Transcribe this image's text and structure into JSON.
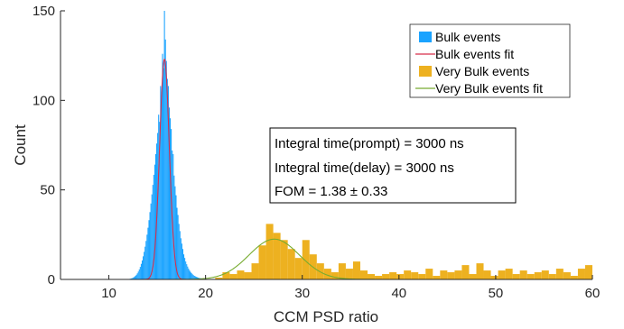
{
  "chart_data": {
    "type": "histogram",
    "title": "",
    "xlabel": "CCM PSD ratio",
    "ylabel": "Count",
    "xlim": [
      5,
      60
    ],
    "ylim": [
      0,
      150
    ],
    "xticks": [
      "10",
      "20",
      "30",
      "40",
      "50",
      "60"
    ],
    "xtick_values": [
      10,
      20,
      30,
      40,
      50,
      60
    ],
    "yticks": [
      "0",
      "50",
      "100",
      "150"
    ],
    "ytick_values": [
      0,
      50,
      100,
      150
    ],
    "legend_placement": "top-right",
    "legend": [
      {
        "label": "Bulk events",
        "kind": "bar",
        "color": "#1aa3ff"
      },
      {
        "label": "Bulk events fit",
        "kind": "line",
        "color": "#d62f4b"
      },
      {
        "label": "Very Bulk events",
        "kind": "bar",
        "color": "#edb120"
      },
      {
        "label": "Very Bulk events fit",
        "kind": "line",
        "color": "#77ac30"
      }
    ],
    "annotation": [
      "Integral time(prompt) = 3000 ns",
      "Integral time(delay) = 3000 ns",
      "FOM = 1.38 ± 0.33"
    ],
    "series": [
      {
        "name": "Bulk events",
        "kind": "histogram",
        "color": "#1aa3ff",
        "bin_width": 0.1,
        "bins": [
          [
            12.0,
            0.2
          ],
          [
            12.1,
            0.3
          ],
          [
            12.2,
            0.4
          ],
          [
            12.3,
            0.6
          ],
          [
            12.4,
            0.8
          ],
          [
            12.5,
            1.1
          ],
          [
            12.6,
            1.5
          ],
          [
            12.7,
            2.0
          ],
          [
            12.8,
            2.6
          ],
          [
            12.9,
            3.4
          ],
          [
            13.0,
            4.4
          ],
          [
            13.1,
            5.6
          ],
          [
            13.2,
            7.0
          ],
          [
            13.3,
            8.7
          ],
          [
            13.4,
            10.6
          ],
          [
            13.5,
            12.9
          ],
          [
            13.6,
            15.4
          ],
          [
            13.7,
            18.3
          ],
          [
            13.8,
            21.5
          ],
          [
            13.9,
            25.0
          ],
          [
            14.0,
            28.9
          ],
          [
            14.1,
            33.1
          ],
          [
            14.2,
            37.6
          ],
          [
            14.3,
            42.4
          ],
          [
            14.4,
            47.5
          ],
          [
            14.5,
            52.8
          ],
          [
            14.6,
            58.4
          ],
          [
            14.7,
            64.1
          ],
          [
            14.8,
            70.0
          ],
          [
            14.9,
            75.9
          ],
          [
            15.0,
            81.8
          ],
          [
            15.1,
            92.0
          ],
          [
            15.2,
            88.0
          ],
          [
            15.3,
            108.0
          ],
          [
            15.4,
            103.0
          ],
          [
            15.5,
            126.0
          ],
          [
            15.6,
            118.0
          ],
          [
            15.7,
            150.0
          ],
          [
            15.8,
            134.0
          ],
          [
            15.9,
            122.0
          ],
          [
            16.0,
            112.0
          ],
          [
            16.1,
            108.0
          ],
          [
            16.2,
            96.0
          ],
          [
            16.3,
            90.0
          ],
          [
            16.4,
            84.0
          ],
          [
            16.5,
            72.0
          ],
          [
            16.6,
            70.0
          ],
          [
            16.7,
            58.0
          ],
          [
            16.8,
            52.0
          ],
          [
            16.9,
            47.0
          ],
          [
            17.0,
            40.0
          ],
          [
            17.1,
            36.0
          ],
          [
            17.2,
            31.0
          ],
          [
            17.3,
            27.0
          ],
          [
            17.4,
            23.0
          ],
          [
            17.5,
            20.0
          ],
          [
            17.6,
            17.0
          ],
          [
            17.7,
            14.0
          ],
          [
            17.8,
            12.0
          ],
          [
            17.9,
            10.0
          ],
          [
            18.0,
            8.5
          ],
          [
            18.1,
            7.2
          ],
          [
            18.2,
            6.0
          ],
          [
            18.3,
            5.0
          ],
          [
            18.4,
            4.2
          ],
          [
            18.5,
            3.5
          ],
          [
            18.6,
            2.9
          ],
          [
            18.7,
            2.4
          ],
          [
            18.8,
            2.0
          ],
          [
            18.9,
            1.7
          ],
          [
            19.0,
            1.4
          ],
          [
            19.1,
            1.2
          ],
          [
            19.2,
            1.0
          ],
          [
            19.3,
            0.8
          ],
          [
            19.4,
            0.7
          ],
          [
            19.5,
            0.6
          ],
          [
            19.6,
            0.5
          ],
          [
            19.7,
            0.4
          ],
          [
            19.8,
            0.3
          ],
          [
            19.9,
            0.3
          ],
          [
            20.0,
            0.2
          ],
          [
            20.1,
            0.2
          ],
          [
            20.2,
            0.1
          ],
          [
            20.3,
            0.1
          ]
        ]
      },
      {
        "name": "Bulk events fit",
        "kind": "gaussian",
        "color": "#d62f4b",
        "amplitude": 123,
        "mean": 15.75,
        "sigma": 0.5,
        "x_range": [
          7,
          20
        ]
      },
      {
        "name": "Very Bulk events",
        "kind": "histogram",
        "color": "#edb120",
        "bin_width": 0.75,
        "bins": [
          [
            21.0,
            1
          ],
          [
            21.75,
            4
          ],
          [
            22.5,
            3
          ],
          [
            23.25,
            5
          ],
          [
            24.0,
            4
          ],
          [
            24.75,
            9
          ],
          [
            25.5,
            19
          ],
          [
            26.25,
            31
          ],
          [
            27.0,
            26
          ],
          [
            27.75,
            22
          ],
          [
            28.5,
            17
          ],
          [
            29.25,
            12
          ],
          [
            30.0,
            22
          ],
          [
            30.75,
            14
          ],
          [
            31.5,
            9
          ],
          [
            32.25,
            6
          ],
          [
            33.0,
            4
          ],
          [
            33.75,
            9
          ],
          [
            34.5,
            6
          ],
          [
            35.25,
            10
          ],
          [
            36.0,
            5
          ],
          [
            36.75,
            3
          ],
          [
            37.5,
            2
          ],
          [
            38.25,
            3
          ],
          [
            39.0,
            4
          ],
          [
            39.75,
            3
          ],
          [
            40.5,
            5
          ],
          [
            41.25,
            4
          ],
          [
            42.0,
            3
          ],
          [
            42.75,
            6
          ],
          [
            43.5,
            2
          ],
          [
            44.25,
            5
          ],
          [
            45.0,
            4
          ],
          [
            45.75,
            5
          ],
          [
            46.5,
            8
          ],
          [
            47.25,
            3
          ],
          [
            48.0,
            9
          ],
          [
            48.75,
            5
          ],
          [
            49.5,
            2
          ],
          [
            50.25,
            5
          ],
          [
            51.0,
            6
          ],
          [
            51.75,
            3
          ],
          [
            52.5,
            5
          ],
          [
            53.25,
            3
          ],
          [
            54.0,
            4
          ],
          [
            54.75,
            5
          ],
          [
            55.5,
            3
          ],
          [
            56.25,
            6
          ],
          [
            57.0,
            4
          ],
          [
            57.75,
            2
          ],
          [
            58.5,
            6
          ],
          [
            59.25,
            8
          ]
        ]
      },
      {
        "name": "Very Bulk events fit",
        "kind": "gaussian",
        "color": "#77ac30",
        "amplitude": 22.5,
        "mean": 27.1,
        "sigma": 2.6,
        "x_range": [
          7,
          60
        ]
      }
    ]
  }
}
